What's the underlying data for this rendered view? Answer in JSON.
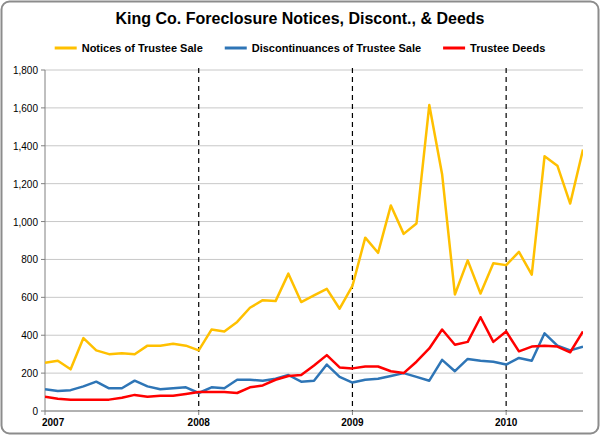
{
  "chart_data": {
    "type": "line",
    "title": "King Co. Foreclosure Notices, Discont., & Deeds",
    "categories": [
      "2007",
      null,
      null,
      null,
      null,
      null,
      null,
      null,
      null,
      null,
      null,
      null,
      "2008",
      null,
      null,
      null,
      null,
      null,
      null,
      null,
      null,
      null,
      null,
      null,
      "2009",
      null,
      null,
      null,
      null,
      null,
      null,
      null,
      null,
      null,
      null,
      null,
      "2010",
      null,
      null,
      null,
      null,
      null,
      null
    ],
    "series": [
      {
        "name": "Notices of Trustee Sale",
        "color": "#FFC000",
        "values": [
          255,
          265,
          220,
          385,
          320,
          300,
          305,
          300,
          345,
          345,
          355,
          345,
          320,
          430,
          420,
          470,
          545,
          585,
          580,
          725,
          575,
          610,
          645,
          540,
          660,
          915,
          835,
          1085,
          935,
          990,
          1615,
          1250,
          615,
          795,
          620,
          780,
          770,
          840,
          720,
          1345,
          1295,
          1095,
          1380
        ]
      },
      {
        "name": "Discontinuances of Trustee Sale",
        "color": "#2E75B6",
        "values": [
          115,
          105,
          110,
          130,
          155,
          120,
          120,
          160,
          130,
          115,
          120,
          125,
          95,
          125,
          120,
          165,
          165,
          160,
          170,
          190,
          155,
          160,
          245,
          180,
          150,
          165,
          170,
          185,
          200,
          180,
          160,
          270,
          210,
          275,
          265,
          260,
          245,
          280,
          265,
          410,
          345,
          320,
          340
        ]
      },
      {
        "name": "Trustee Deeds",
        "color": "#FF0000",
        "values": [
          75,
          65,
          60,
          60,
          60,
          60,
          70,
          85,
          75,
          80,
          80,
          90,
          100,
          100,
          100,
          95,
          125,
          135,
          165,
          185,
          190,
          240,
          295,
          230,
          225,
          235,
          235,
          210,
          200,
          260,
          330,
          430,
          350,
          365,
          495,
          365,
          420,
          315,
          340,
          345,
          340,
          310,
          420
        ]
      }
    ],
    "ylim": [
      0,
      1800
    ],
    "yticks": [
      0,
      200,
      400,
      600,
      800,
      {
        "value": 1000,
        "label": "1,000"
      },
      {
        "value": 1200,
        "label": "1,200"
      },
      {
        "value": 1400,
        "label": "1,400"
      },
      {
        "value": 1600,
        "label": "1,600"
      },
      {
        "value": 1800,
        "label": "1,800"
      }
    ],
    "grid": true,
    "legend": "top"
  }
}
